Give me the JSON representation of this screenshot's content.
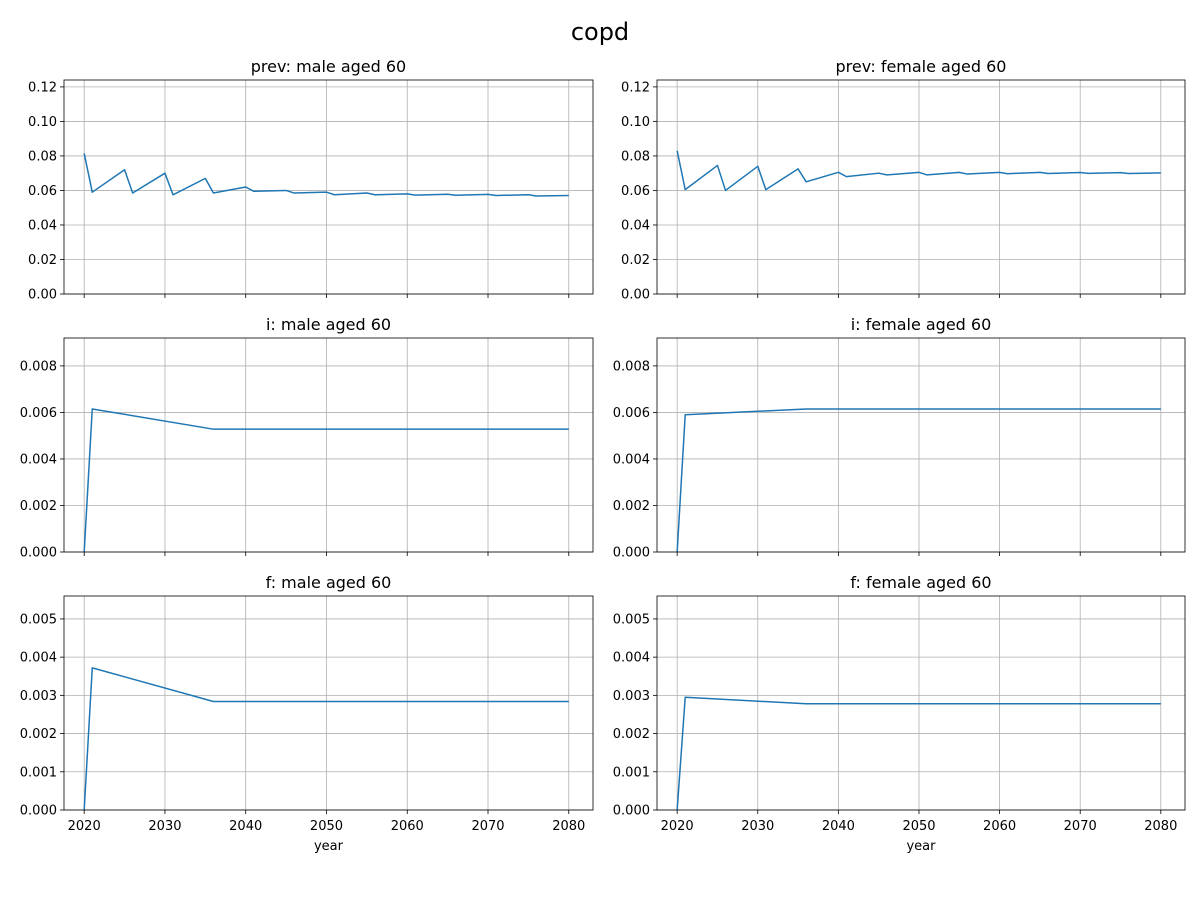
{
  "figure": {
    "title": "copd"
  },
  "chart_data": [
    {
      "type": "line",
      "title": "prev: male aged 60",
      "xlabel": "",
      "ylabel": "",
      "xlim": [
        2017.5,
        2083
      ],
      "ylim": [
        0,
        0.124
      ],
      "xticks": [
        2020,
        2030,
        2040,
        2050,
        2060,
        2070,
        2080
      ],
      "xtick_labels_visible": false,
      "yticks": [
        0.0,
        0.02,
        0.04,
        0.06,
        0.08,
        0.1,
        0.12
      ],
      "ytick_labels": [
        "0.00",
        "0.02",
        "0.04",
        "0.06",
        "0.08",
        "0.10",
        "0.12"
      ],
      "grid": true,
      "color": "#1f77b4",
      "x": [
        2020,
        2021,
        2025,
        2026,
        2030,
        2031,
        2035,
        2036,
        2040,
        2041,
        2045,
        2046,
        2050,
        2051,
        2055,
        2056,
        2060,
        2061,
        2065,
        2066,
        2070,
        2071,
        2075,
        2076,
        2080
      ],
      "values": [
        0.0815,
        0.059,
        0.072,
        0.0585,
        0.07,
        0.0575,
        0.067,
        0.0585,
        0.062,
        0.0595,
        0.06,
        0.0585,
        0.059,
        0.0575,
        0.0585,
        0.0575,
        0.058,
        0.0573,
        0.0578,
        0.0572,
        0.0577,
        0.0571,
        0.0575,
        0.0568,
        0.0571
      ]
    },
    {
      "type": "line",
      "title": "prev: female aged 60",
      "xlabel": "",
      "ylabel": "",
      "xlim": [
        2017.5,
        2083
      ],
      "ylim": [
        0,
        0.124
      ],
      "xticks": [
        2020,
        2030,
        2040,
        2050,
        2060,
        2070,
        2080
      ],
      "xtick_labels_visible": false,
      "yticks": [
        0.0,
        0.02,
        0.04,
        0.06,
        0.08,
        0.1,
        0.12
      ],
      "ytick_labels": [
        "0.00",
        "0.02",
        "0.04",
        "0.06",
        "0.08",
        "0.10",
        "0.12"
      ],
      "grid": true,
      "color": "#1f77b4",
      "x": [
        2020,
        2021,
        2025,
        2026,
        2030,
        2031,
        2035,
        2036,
        2040,
        2041,
        2045,
        2046,
        2050,
        2051,
        2055,
        2056,
        2060,
        2061,
        2065,
        2066,
        2070,
        2071,
        2075,
        2076,
        2080
      ],
      "values": [
        0.083,
        0.0605,
        0.0745,
        0.06,
        0.074,
        0.0605,
        0.0725,
        0.065,
        0.0705,
        0.068,
        0.07,
        0.069,
        0.0705,
        0.069,
        0.0705,
        0.0695,
        0.0705,
        0.0697,
        0.0705,
        0.0698,
        0.0704,
        0.0699,
        0.0703,
        0.0698,
        0.0702
      ]
    },
    {
      "type": "line",
      "title": "i: male aged 60",
      "xlabel": "",
      "ylabel": "",
      "xlim": [
        2017.5,
        2083
      ],
      "ylim": [
        0,
        0.0092
      ],
      "xticks": [
        2020,
        2030,
        2040,
        2050,
        2060,
        2070,
        2080
      ],
      "xtick_labels_visible": false,
      "yticks": [
        0.0,
        0.002,
        0.004,
        0.006,
        0.008
      ],
      "ytick_labels": [
        "0.000",
        "0.002",
        "0.004",
        "0.006",
        "0.008"
      ],
      "grid": true,
      "color": "#1f77b4",
      "x": [
        2020,
        2021,
        2036,
        2080
      ],
      "values": [
        0.0,
        0.00615,
        0.00528,
        0.00528
      ]
    },
    {
      "type": "line",
      "title": "i: female aged 60",
      "xlabel": "",
      "ylabel": "",
      "xlim": [
        2017.5,
        2083
      ],
      "ylim": [
        0,
        0.0092
      ],
      "xticks": [
        2020,
        2030,
        2040,
        2050,
        2060,
        2070,
        2080
      ],
      "xtick_labels_visible": false,
      "yticks": [
        0.0,
        0.002,
        0.004,
        0.006,
        0.008
      ],
      "ytick_labels": [
        "0.000",
        "0.002",
        "0.004",
        "0.006",
        "0.008"
      ],
      "grid": true,
      "color": "#1f77b4",
      "x": [
        2020,
        2021,
        2030,
        2036,
        2080
      ],
      "values": [
        0.0,
        0.0059,
        0.00605,
        0.00615,
        0.00615
      ]
    },
    {
      "type": "line",
      "title": "f: male aged 60",
      "xlabel": "year",
      "ylabel": "",
      "xlim": [
        2017.5,
        2083
      ],
      "ylim": [
        0,
        0.0056
      ],
      "xticks": [
        2020,
        2030,
        2040,
        2050,
        2060,
        2070,
        2080
      ],
      "xtick_labels_visible": true,
      "xtick_labels": [
        "2020",
        "2030",
        "2040",
        "2050",
        "2060",
        "2070",
        "2080"
      ],
      "yticks": [
        0.0,
        0.001,
        0.002,
        0.003,
        0.004,
        0.005
      ],
      "ytick_labels": [
        "0.000",
        "0.001",
        "0.002",
        "0.003",
        "0.004",
        "0.005"
      ],
      "grid": true,
      "color": "#1f77b4",
      "x": [
        2020,
        2021,
        2036,
        2080
      ],
      "values": [
        0.0,
        0.00372,
        0.00284,
        0.00284
      ]
    },
    {
      "type": "line",
      "title": "f: female aged 60",
      "xlabel": "year",
      "ylabel": "",
      "xlim": [
        2017.5,
        2083
      ],
      "ylim": [
        0,
        0.0056
      ],
      "xticks": [
        2020,
        2030,
        2040,
        2050,
        2060,
        2070,
        2080
      ],
      "xtick_labels_visible": true,
      "xtick_labels": [
        "2020",
        "2030",
        "2040",
        "2050",
        "2060",
        "2070",
        "2080"
      ],
      "yticks": [
        0.0,
        0.001,
        0.002,
        0.003,
        0.004,
        0.005
      ],
      "ytick_labels": [
        "0.000",
        "0.001",
        "0.002",
        "0.003",
        "0.004",
        "0.005"
      ],
      "grid": true,
      "color": "#1f77b4",
      "x": [
        2020,
        2021,
        2036,
        2080
      ],
      "values": [
        0.0,
        0.00295,
        0.00278,
        0.00278
      ]
    }
  ]
}
